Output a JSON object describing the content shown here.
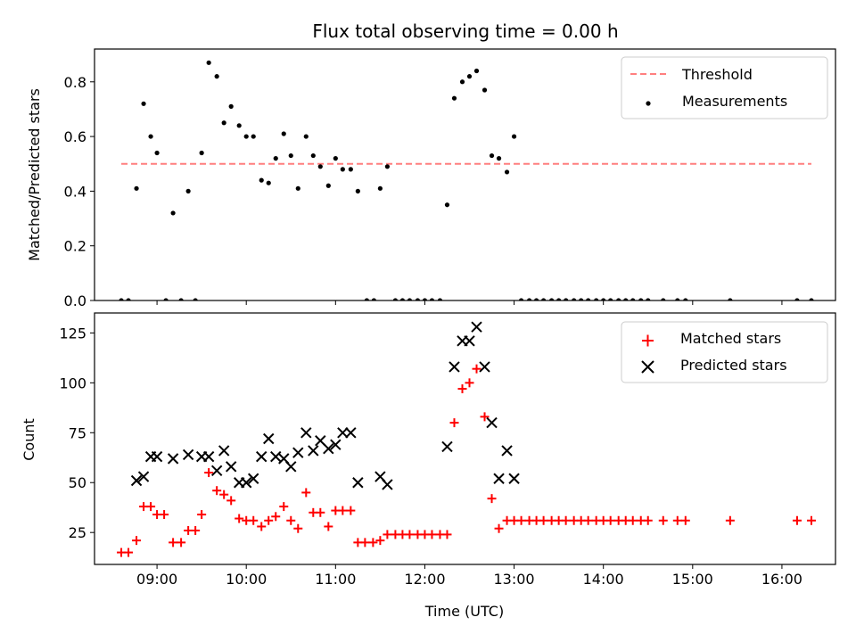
{
  "figure": {
    "title": "Flux total observing time = 0.00 h"
  },
  "chart_data": [
    {
      "type": "scatter",
      "id": "top",
      "ylabel": "Matched/Predicted stars",
      "xlim": [
        8.3,
        16.6
      ],
      "ylim": [
        0,
        0.92
      ],
      "yticks": [
        0.0,
        0.2,
        0.4,
        0.6,
        0.8
      ],
      "ytick_labels": [
        "0.0",
        "0.2",
        "0.4",
        "0.6",
        "0.8"
      ],
      "xticks": [
        9,
        10,
        11,
        12,
        13,
        14,
        15,
        16
      ],
      "xtick_labels_shown": false,
      "legend_position": "top-right",
      "threshold": {
        "name": "Threshold",
        "value": 0.5,
        "x_range": [
          8.6,
          16.33
        ],
        "color": "#ff7f7f",
        "style": "dashed"
      },
      "series": [
        {
          "name": "Measurements",
          "marker": "dot",
          "color": "#000000",
          "points": [
            [
              8.6,
              0
            ],
            [
              8.68,
              0
            ],
            [
              8.77,
              0.41
            ],
            [
              8.85,
              0.72
            ],
            [
              8.93,
              0.6
            ],
            [
              9.0,
              0.54
            ],
            [
              9.1,
              0
            ],
            [
              9.18,
              0.32
            ],
            [
              9.27,
              0
            ],
            [
              9.35,
              0.4
            ],
            [
              9.43,
              0
            ],
            [
              9.5,
              0.54
            ],
            [
              9.58,
              0.87
            ],
            [
              9.67,
              0.82
            ],
            [
              9.75,
              0.65
            ],
            [
              9.83,
              0.71
            ],
            [
              9.92,
              0.64
            ],
            [
              10.0,
              0.6
            ],
            [
              10.08,
              0.6
            ],
            [
              10.17,
              0.44
            ],
            [
              10.25,
              0.43
            ],
            [
              10.33,
              0.52
            ],
            [
              10.42,
              0.61
            ],
            [
              10.5,
              0.53
            ],
            [
              10.58,
              0.41
            ],
            [
              10.67,
              0.6
            ],
            [
              10.75,
              0.53
            ],
            [
              10.83,
              0.49
            ],
            [
              10.92,
              0.42
            ],
            [
              11.0,
              0.52
            ],
            [
              11.08,
              0.48
            ],
            [
              11.17,
              0.48
            ],
            [
              11.25,
              0.4
            ],
            [
              11.35,
              0
            ],
            [
              11.43,
              0
            ],
            [
              11.5,
              0.41
            ],
            [
              11.58,
              0.49
            ],
            [
              11.67,
              0
            ],
            [
              11.75,
              0
            ],
            [
              11.83,
              0
            ],
            [
              11.92,
              0
            ],
            [
              12.0,
              0
            ],
            [
              12.08,
              0
            ],
            [
              12.17,
              0
            ],
            [
              12.25,
              0.35
            ],
            [
              12.33,
              0.74
            ],
            [
              12.42,
              0.8
            ],
            [
              12.5,
              0.82
            ],
            [
              12.58,
              0.84
            ],
            [
              12.67,
              0.77
            ],
            [
              12.75,
              0.53
            ],
            [
              12.83,
              0.52
            ],
            [
              12.92,
              0.47
            ],
            [
              13.0,
              0.6
            ],
            [
              13.08,
              0
            ],
            [
              13.17,
              0
            ],
            [
              13.25,
              0
            ],
            [
              13.33,
              0
            ],
            [
              13.42,
              0
            ],
            [
              13.5,
              0
            ],
            [
              13.58,
              0
            ],
            [
              13.67,
              0
            ],
            [
              13.75,
              0
            ],
            [
              13.83,
              0
            ],
            [
              13.92,
              0
            ],
            [
              14.0,
              0
            ],
            [
              14.08,
              0
            ],
            [
              14.17,
              0
            ],
            [
              14.25,
              0
            ],
            [
              14.33,
              0
            ],
            [
              14.42,
              0
            ],
            [
              14.5,
              0
            ],
            [
              14.67,
              0
            ],
            [
              14.83,
              0
            ],
            [
              14.92,
              0
            ],
            [
              15.42,
              0
            ],
            [
              16.17,
              0
            ],
            [
              16.33,
              0
            ]
          ]
        }
      ]
    },
    {
      "type": "scatter",
      "id": "bottom",
      "xlabel": "Time (UTC)",
      "ylabel": "Count",
      "xlim": [
        8.3,
        16.6
      ],
      "ylim": [
        9,
        135
      ],
      "yticks": [
        25,
        50,
        75,
        100,
        125
      ],
      "ytick_labels": [
        "25",
        "50",
        "75",
        "100",
        "125"
      ],
      "xticks": [
        9,
        10,
        11,
        12,
        13,
        14,
        15,
        16
      ],
      "xtick_labels": [
        "09:00",
        "10:00",
        "11:00",
        "12:00",
        "13:00",
        "14:00",
        "15:00",
        "16:00"
      ],
      "legend_position": "top-right",
      "series": [
        {
          "name": "Matched stars",
          "marker": "plus",
          "color": "#ff0000",
          "points": [
            [
              8.6,
              15
            ],
            [
              8.68,
              15
            ],
            [
              8.77,
              21
            ],
            [
              8.85,
              38
            ],
            [
              8.93,
              38
            ],
            [
              9.0,
              34
            ],
            [
              9.08,
              34
            ],
            [
              9.18,
              20
            ],
            [
              9.27,
              20
            ],
            [
              9.35,
              26
            ],
            [
              9.43,
              26
            ],
            [
              9.5,
              34
            ],
            [
              9.58,
              55
            ],
            [
              9.67,
              46
            ],
            [
              9.75,
              44
            ],
            [
              9.83,
              41
            ],
            [
              9.92,
              32
            ],
            [
              10.0,
              31
            ],
            [
              10.08,
              31
            ],
            [
              10.17,
              28
            ],
            [
              10.25,
              31
            ],
            [
              10.33,
              33
            ],
            [
              10.42,
              38
            ],
            [
              10.5,
              31
            ],
            [
              10.58,
              27
            ],
            [
              10.67,
              45
            ],
            [
              10.75,
              35
            ],
            [
              10.83,
              35
            ],
            [
              10.92,
              28
            ],
            [
              11.0,
              36
            ],
            [
              11.08,
              36
            ],
            [
              11.17,
              36
            ],
            [
              11.25,
              20
            ],
            [
              11.33,
              20
            ],
            [
              11.42,
              20
            ],
            [
              11.5,
              21
            ],
            [
              11.58,
              24
            ],
            [
              11.67,
              24
            ],
            [
              11.75,
              24
            ],
            [
              11.83,
              24
            ],
            [
              11.92,
              24
            ],
            [
              12.0,
              24
            ],
            [
              12.08,
              24
            ],
            [
              12.17,
              24
            ],
            [
              12.25,
              24
            ],
            [
              12.33,
              80
            ],
            [
              12.42,
              97
            ],
            [
              12.5,
              100
            ],
            [
              12.58,
              107
            ],
            [
              12.67,
              83
            ],
            [
              12.75,
              42
            ],
            [
              12.83,
              27
            ],
            [
              12.92,
              31
            ],
            [
              13.0,
              31
            ],
            [
              13.08,
              31
            ],
            [
              13.17,
              31
            ],
            [
              13.25,
              31
            ],
            [
              13.33,
              31
            ],
            [
              13.42,
              31
            ],
            [
              13.5,
              31
            ],
            [
              13.58,
              31
            ],
            [
              13.67,
              31
            ],
            [
              13.75,
              31
            ],
            [
              13.83,
              31
            ],
            [
              13.92,
              31
            ],
            [
              14.0,
              31
            ],
            [
              14.08,
              31
            ],
            [
              14.17,
              31
            ],
            [
              14.25,
              31
            ],
            [
              14.33,
              31
            ],
            [
              14.42,
              31
            ],
            [
              14.5,
              31
            ],
            [
              14.67,
              31
            ],
            [
              14.83,
              31
            ],
            [
              14.92,
              31
            ],
            [
              15.42,
              31
            ],
            [
              16.17,
              31
            ],
            [
              16.33,
              31
            ]
          ]
        },
        {
          "name": "Predicted stars",
          "marker": "x",
          "color": "#000000",
          "points": [
            [
              8.77,
              51
            ],
            [
              8.85,
              53
            ],
            [
              8.93,
              63
            ],
            [
              9.0,
              63
            ],
            [
              9.18,
              62
            ],
            [
              9.35,
              64
            ],
            [
              9.5,
              63
            ],
            [
              9.58,
              63
            ],
            [
              9.67,
              56
            ],
            [
              9.75,
              66
            ],
            [
              9.83,
              58
            ],
            [
              9.92,
              50
            ],
            [
              10.0,
              50
            ],
            [
              10.08,
              52
            ],
            [
              10.17,
              63
            ],
            [
              10.25,
              72
            ],
            [
              10.33,
              63
            ],
            [
              10.42,
              62
            ],
            [
              10.5,
              58
            ],
            [
              10.58,
              65
            ],
            [
              10.67,
              75
            ],
            [
              10.75,
              66
            ],
            [
              10.83,
              71
            ],
            [
              10.92,
              67
            ],
            [
              11.0,
              69
            ],
            [
              11.08,
              75
            ],
            [
              11.17,
              75
            ],
            [
              11.25,
              50
            ],
            [
              11.5,
              53
            ],
            [
              11.58,
              49
            ],
            [
              12.25,
              68
            ],
            [
              12.33,
              108
            ],
            [
              12.42,
              121
            ],
            [
              12.5,
              121
            ],
            [
              12.58,
              128
            ],
            [
              12.67,
              108
            ],
            [
              12.75,
              80
            ],
            [
              12.83,
              52
            ],
            [
              12.92,
              66
            ],
            [
              13.0,
              52
            ]
          ]
        }
      ]
    }
  ]
}
